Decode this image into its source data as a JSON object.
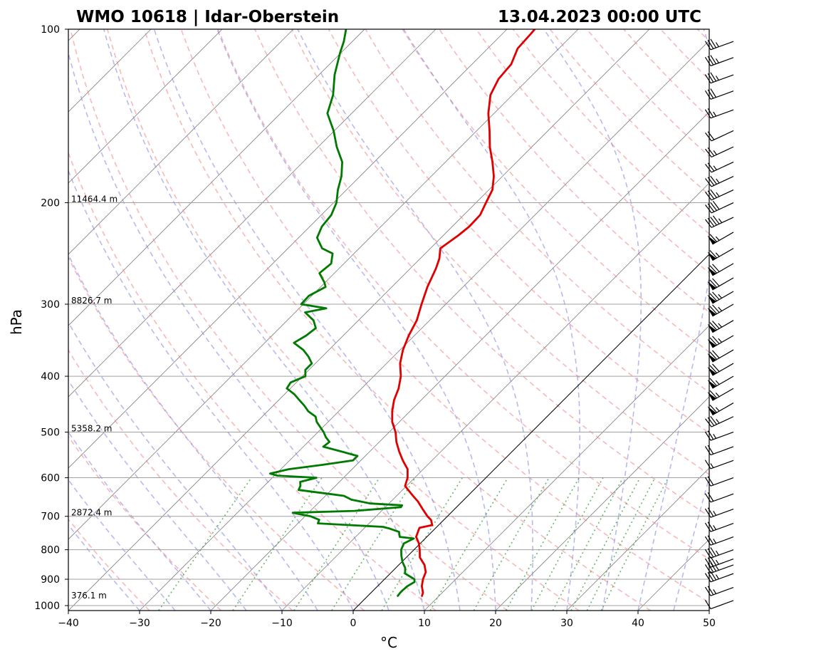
{
  "chart_data": {
    "type": "line",
    "subtype": "skew-T log-p diagram",
    "title_left": "WMO 10618 | Idar-Oberstein",
    "title_right": "13.04.2023 00:00 UTC",
    "xlabel": "°C",
    "ylabel": "hPa",
    "xlim": [
      -40,
      50
    ],
    "ylim": [
      1020,
      100
    ],
    "y_scale": "log",
    "grid": true,
    "x_ticks": [
      -40,
      -30,
      -20,
      -10,
      0,
      10,
      20,
      30,
      40,
      50
    ],
    "y_ticks": [
      100,
      200,
      300,
      400,
      500,
      600,
      700,
      800,
      900,
      1000
    ],
    "height_labels": [
      {
        "p": 200,
        "text": "11464.4 m"
      },
      {
        "p": 300,
        "text": "8826.7 m"
      },
      {
        "p": 500,
        "text": "5358.2 m"
      },
      {
        "p": 700,
        "text": "2872.4 m"
      },
      {
        "p": 975,
        "text": "376.1 m"
      }
    ],
    "series": [
      {
        "role": "temperature",
        "color": "#e00000",
        "points": [
          [
            962,
            7.6
          ],
          [
            950,
            7.3
          ],
          [
            925,
            6.2
          ],
          [
            900,
            5.4
          ],
          [
            875,
            4.8
          ],
          [
            850,
            3.6
          ],
          [
            825,
            1.9
          ],
          [
            800,
            0.8
          ],
          [
            780,
            -0.2
          ],
          [
            760,
            -1.5
          ],
          [
            740,
            -2.1
          ],
          [
            733,
            -2.3
          ],
          [
            725,
            -0.9
          ],
          [
            710,
            -1.8
          ],
          [
            700,
            -2.8
          ],
          [
            680,
            -4.5
          ],
          [
            660,
            -6.2
          ],
          [
            645,
            -7.7
          ],
          [
            630,
            -9.2
          ],
          [
            620,
            -10.2
          ],
          [
            600,
            -11.0
          ],
          [
            580,
            -12.2
          ],
          [
            560,
            -14.1
          ],
          [
            540,
            -15.9
          ],
          [
            520,
            -17.6
          ],
          [
            500,
            -19.1
          ],
          [
            480,
            -21.0
          ],
          [
            460,
            -22.5
          ],
          [
            440,
            -23.8
          ],
          [
            420,
            -24.8
          ],
          [
            400,
            -26.2
          ],
          [
            380,
            -28.1
          ],
          [
            360,
            -29.6
          ],
          [
            340,
            -30.8
          ],
          [
            320,
            -31.8
          ],
          [
            300,
            -33.4
          ],
          [
            280,
            -35.0
          ],
          [
            260,
            -36.4
          ],
          [
            250,
            -37.3
          ],
          [
            240,
            -38.6
          ],
          [
            228,
            -37.9
          ],
          [
            220,
            -37.6
          ],
          [
            210,
            -37.7
          ],
          [
            200,
            -38.6
          ],
          [
            190,
            -39.5
          ],
          [
            180,
            -41.2
          ],
          [
            170,
            -43.4
          ],
          [
            160,
            -45.9
          ],
          [
            150,
            -48.2
          ],
          [
            140,
            -50.8
          ],
          [
            130,
            -53.1
          ],
          [
            122,
            -54.2
          ],
          [
            115,
            -54.5
          ],
          [
            108,
            -55.8
          ],
          [
            102,
            -56.0
          ],
          [
            100,
            -56.1
          ]
        ]
      },
      {
        "role": "dewpoint",
        "color": "#007a00",
        "points": [
          [
            962,
            4.2
          ],
          [
            950,
            4.1
          ],
          [
            940,
            4.1
          ],
          [
            925,
            4.2
          ],
          [
            910,
            4.6
          ],
          [
            900,
            4.2
          ],
          [
            880,
            2.1
          ],
          [
            860,
            1.3
          ],
          [
            840,
            0.1
          ],
          [
            820,
            -0.9
          ],
          [
            800,
            -1.8
          ],
          [
            780,
            -2.3
          ],
          [
            765,
            -1.6
          ],
          [
            760,
            -3.8
          ],
          [
            745,
            -4.6
          ],
          [
            735,
            -6.4
          ],
          [
            730,
            -7.6
          ],
          [
            720,
            -17.2
          ],
          [
            710,
            -17.5
          ],
          [
            700,
            -19.2
          ],
          [
            690,
            -22.2
          ],
          [
            685,
            -13.8
          ],
          [
            675,
            -7.8
          ],
          [
            670,
            -7.9
          ],
          [
            665,
            -12.6
          ],
          [
            655,
            -15.8
          ],
          [
            645,
            -17.4
          ],
          [
            640,
            -19.8
          ],
          [
            630,
            -24.6
          ],
          [
            620,
            -24.9
          ],
          [
            610,
            -25.5
          ],
          [
            600,
            -23.8
          ],
          [
            595,
            -29.6
          ],
          [
            590,
            -30.9
          ],
          [
            580,
            -28.9
          ],
          [
            570,
            -24.8
          ],
          [
            560,
            -21.1
          ],
          [
            550,
            -21.1
          ],
          [
            540,
            -24.1
          ],
          [
            530,
            -27.2
          ],
          [
            520,
            -27.0
          ],
          [
            510,
            -28.2
          ],
          [
            500,
            -29.2
          ],
          [
            480,
            -31.6
          ],
          [
            470,
            -32.5
          ],
          [
            460,
            -34.3
          ],
          [
            450,
            -35.6
          ],
          [
            440,
            -37.1
          ],
          [
            430,
            -38.6
          ],
          [
            420,
            -40.5
          ],
          [
            410,
            -40.8
          ],
          [
            400,
            -39.6
          ],
          [
            390,
            -40.5
          ],
          [
            380,
            -40.5
          ],
          [
            370,
            -41.9
          ],
          [
            360,
            -43.6
          ],
          [
            350,
            -45.9
          ],
          [
            340,
            -45.2
          ],
          [
            330,
            -44.9
          ],
          [
            320,
            -46.3
          ],
          [
            310,
            -48.6
          ],
          [
            305,
            -46.2
          ],
          [
            300,
            -50.3
          ],
          [
            290,
            -50.4
          ],
          [
            280,
            -49.3
          ],
          [
            275,
            -50.1
          ],
          [
            265,
            -52.1
          ],
          [
            255,
            -51.8
          ],
          [
            245,
            -53.0
          ],
          [
            240,
            -55.2
          ],
          [
            230,
            -57.4
          ],
          [
            220,
            -58.3
          ],
          [
            210,
            -58.6
          ],
          [
            200,
            -59.6
          ],
          [
            190,
            -61.2
          ],
          [
            180,
            -62.6
          ],
          [
            170,
            -64.5
          ],
          [
            160,
            -67.4
          ],
          [
            150,
            -70.1
          ],
          [
            140,
            -73.4
          ],
          [
            130,
            -75.2
          ],
          [
            120,
            -77.8
          ],
          [
            110,
            -80.1
          ],
          [
            105,
            -81.2
          ],
          [
            100,
            -82.6
          ]
        ]
      }
    ],
    "wind_barbs": [
      {
        "p": 980,
        "speed_kt": 10,
        "dir_deg": 250
      },
      {
        "p": 930,
        "speed_kt": 25,
        "dir_deg": 250
      },
      {
        "p": 880,
        "speed_kt": 35,
        "dir_deg": 250
      },
      {
        "p": 850,
        "speed_kt": 35,
        "dir_deg": 250
      },
      {
        "p": 830,
        "speed_kt": 35,
        "dir_deg": 250
      },
      {
        "p": 800,
        "speed_kt": 35,
        "dir_deg": 250
      },
      {
        "p": 760,
        "speed_kt": 25,
        "dir_deg": 250
      },
      {
        "p": 720,
        "speed_kt": 25,
        "dir_deg": 250
      },
      {
        "p": 680,
        "speed_kt": 25,
        "dir_deg": 250
      },
      {
        "p": 640,
        "speed_kt": 20,
        "dir_deg": 250
      },
      {
        "p": 600,
        "speed_kt": 20,
        "dir_deg": 250
      },
      {
        "p": 560,
        "speed_kt": 15,
        "dir_deg": 250
      },
      {
        "p": 530,
        "speed_kt": 20,
        "dir_deg": 250
      },
      {
        "p": 500,
        "speed_kt": 25,
        "dir_deg": 250
      },
      {
        "p": 470,
        "speed_kt": 35,
        "dir_deg": 245
      },
      {
        "p": 445,
        "speed_kt": 65,
        "dir_deg": 240
      },
      {
        "p": 420,
        "speed_kt": 65,
        "dir_deg": 240
      },
      {
        "p": 400,
        "speed_kt": 65,
        "dir_deg": 240
      },
      {
        "p": 380,
        "speed_kt": 70,
        "dir_deg": 240
      },
      {
        "p": 360,
        "speed_kt": 70,
        "dir_deg": 240
      },
      {
        "p": 340,
        "speed_kt": 75,
        "dir_deg": 240
      },
      {
        "p": 320,
        "speed_kt": 75,
        "dir_deg": 240
      },
      {
        "p": 300,
        "speed_kt": 75,
        "dir_deg": 240
      },
      {
        "p": 285,
        "speed_kt": 75,
        "dir_deg": 240
      },
      {
        "p": 270,
        "speed_kt": 70,
        "dir_deg": 240
      },
      {
        "p": 255,
        "speed_kt": 70,
        "dir_deg": 240
      },
      {
        "p": 240,
        "speed_kt": 65,
        "dir_deg": 240
      },
      {
        "p": 225,
        "speed_kt": 65,
        "dir_deg": 240
      },
      {
        "p": 212,
        "speed_kt": 45,
        "dir_deg": 245
      },
      {
        "p": 200,
        "speed_kt": 40,
        "dir_deg": 245
      },
      {
        "p": 190,
        "speed_kt": 35,
        "dir_deg": 245
      },
      {
        "p": 180,
        "speed_kt": 35,
        "dir_deg": 245
      },
      {
        "p": 170,
        "speed_kt": 25,
        "dir_deg": 245
      },
      {
        "p": 160,
        "speed_kt": 25,
        "dir_deg": 245
      },
      {
        "p": 150,
        "speed_kt": 20,
        "dir_deg": 245
      },
      {
        "p": 138,
        "speed_kt": 25,
        "dir_deg": 250
      },
      {
        "p": 128,
        "speed_kt": 30,
        "dir_deg": 250
      },
      {
        "p": 120,
        "speed_kt": 35,
        "dir_deg": 250
      },
      {
        "p": 112,
        "speed_kt": 35,
        "dir_deg": 250
      },
      {
        "p": 105,
        "speed_kt": 35,
        "dir_deg": 250
      }
    ],
    "colors": {
      "dry_adiabats": "#f08080",
      "moist_adiabats": "#8080e0",
      "mixing_ratio": "#2a9a2a",
      "isotherms": "#808080",
      "isobars": "#a0a0a0",
      "zero_isotherm": "#000000"
    }
  }
}
